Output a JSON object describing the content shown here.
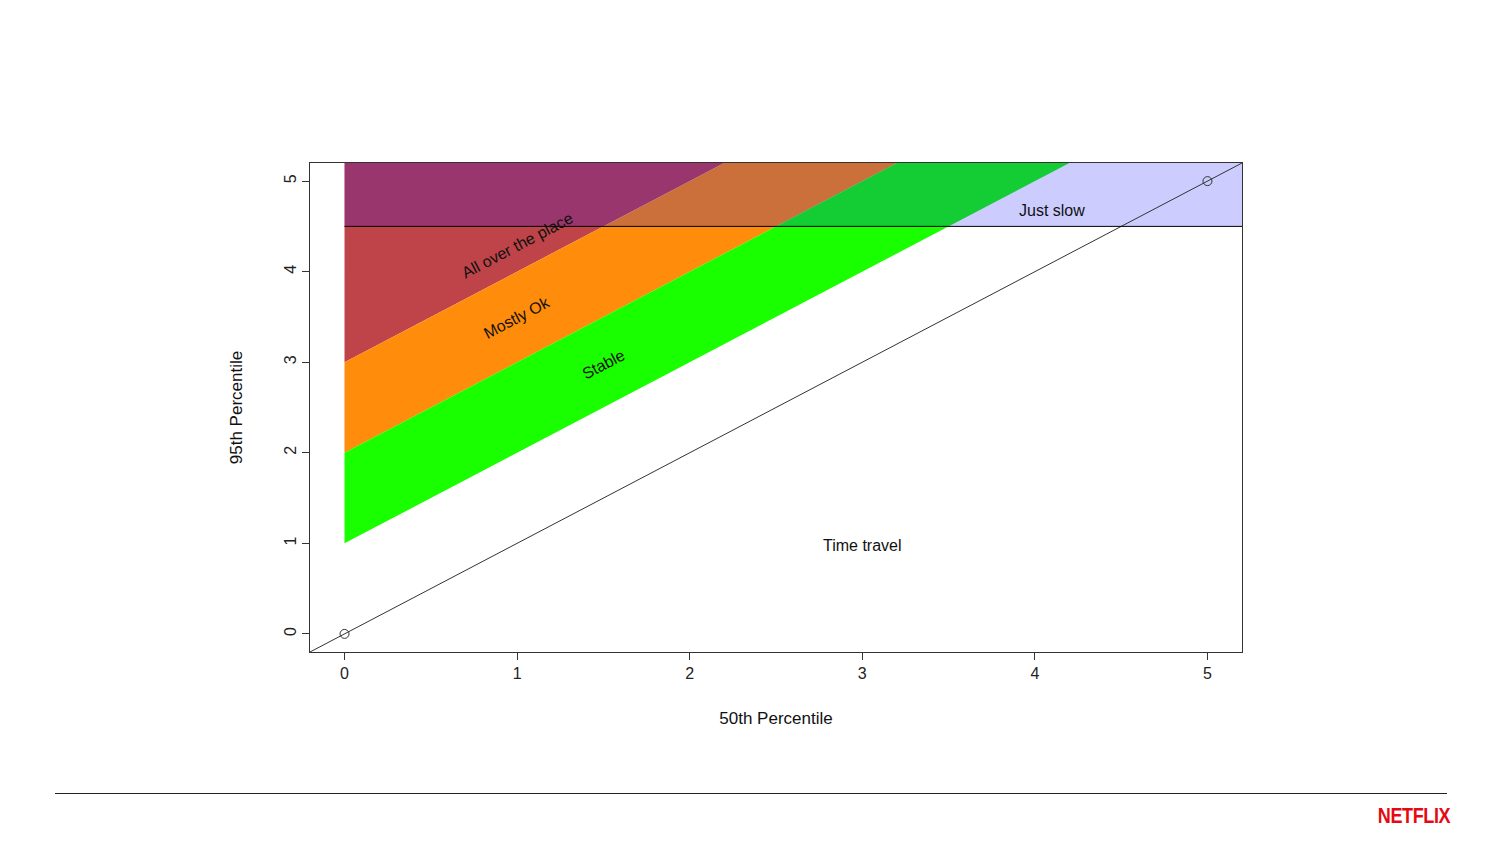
{
  "chart_data": {
    "type": "area",
    "x_label": "50th Percentile",
    "y_label": "95th Percentile",
    "xlim": [
      -0.2,
      5.2
    ],
    "ylim": [
      -0.2,
      5.2
    ],
    "xticks": [
      0,
      1,
      2,
      3,
      4,
      5
    ],
    "yticks": [
      0,
      1,
      2,
      3,
      4,
      5
    ],
    "grid": false,
    "regions": [
      {
        "label": "All over the place",
        "color": "#bf4449",
        "x": [
          0,
          5.2,
          0
        ],
        "y": [
          3,
          8.2,
          8.2
        ],
        "label_x": 1.0,
        "label_y": 4.29
      },
      {
        "label": "Mostly Ok",
        "color": "#ff8c0a",
        "x": [
          0,
          5.2,
          5.2,
          0
        ],
        "y": [
          2,
          7.2,
          8.2,
          3
        ],
        "label_x": 1.0,
        "label_y": 3.49
      },
      {
        "label": "Stable",
        "color": "#1aff00",
        "x": [
          0,
          5.2,
          5.2,
          0
        ],
        "y": [
          1,
          6.2,
          7.2,
          2
        ],
        "label_x": 1.5,
        "label_y": 2.97
      },
      {
        "label": "Just slow",
        "color": "rgba(0,0,255,0.2)",
        "x": [
          0,
          5.2,
          5.2,
          0
        ],
        "y": [
          4.5,
          4.5,
          5.2,
          5.2
        ],
        "label_x": 4.1,
        "label_y": 4.68
      }
    ],
    "series": [
      {
        "type": "line",
        "color": "#333333",
        "x": [
          -0.2,
          5.2
        ],
        "y": [
          -0.2,
          5.2
        ]
      },
      {
        "type": "scatter",
        "marker": "circle-open",
        "color": "#333333",
        "x": [
          0,
          5
        ],
        "y": [
          0,
          5
        ]
      },
      {
        "type": "line",
        "color": "#000000",
        "x": [
          0,
          5.2
        ],
        "y": [
          4.5,
          4.5
        ]
      }
    ],
    "annotations": [
      {
        "text": "Time travel",
        "x": 3.0,
        "y": 0.98
      }
    ],
    "brand": "NETFLIX"
  }
}
